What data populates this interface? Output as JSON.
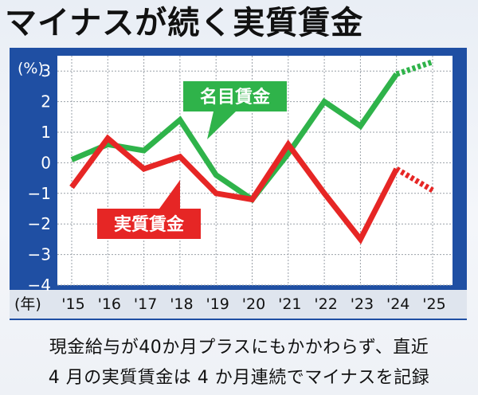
{
  "title": "マイナスが続く実質賃金",
  "caption": {
    "line1": "現金給与が40か月プラスにもかかわらず、直近",
    "line2": "4 月の実質賃金は 4 か月連続でマイナスを記録"
  },
  "colors": {
    "frame": "#1f4fa3",
    "plot_bg": "#ffffff",
    "nominal": "#2fb34a",
    "real": "#e62625"
  },
  "chart_data": {
    "type": "line",
    "y_unit_label": "(%)",
    "x_unit_label": "(年)",
    "categories": [
      "'15",
      "'16",
      "'17",
      "'18",
      "'19",
      "'20",
      "'21",
      "'22",
      "'23",
      "'24",
      "'25"
    ],
    "y_ticks": [
      "3",
      "2",
      "1",
      "0",
      "−1",
      "−2",
      "−3",
      "−4"
    ],
    "ylim": [
      -4,
      3.5
    ],
    "grid": true,
    "series": [
      {
        "name": "名目賃金",
        "color": "#2fb34a",
        "values": [
          0.1,
          0.6,
          0.4,
          1.4,
          -0.4,
          -1.2,
          0.3,
          2.0,
          1.2,
          2.9,
          null
        ],
        "projection": [
          2.9,
          3.3
        ]
      },
      {
        "name": "実質賃金",
        "color": "#e62625",
        "values": [
          -0.8,
          0.8,
          -0.2,
          0.2,
          -1.0,
          -1.2,
          0.6,
          -1.0,
          -2.5,
          -0.2,
          null
        ],
        "projection": [
          -0.2,
          -0.9
        ]
      }
    ]
  }
}
